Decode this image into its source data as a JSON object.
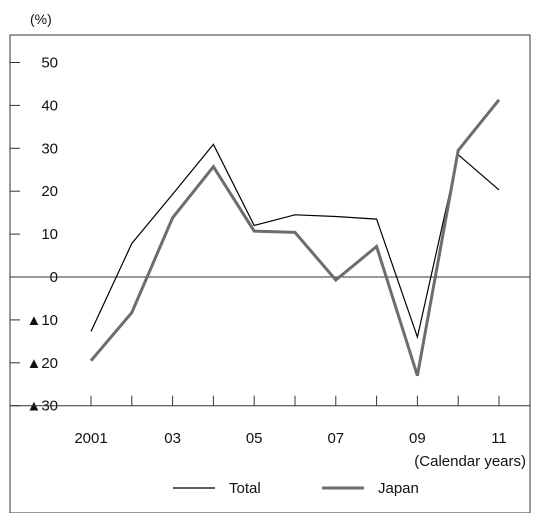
{
  "chart_data": {
    "type": "line",
    "title": "",
    "y_unit": "(%)",
    "x_axis_note": "(Calendar years)",
    "x": [
      2001,
      2002,
      2003,
      2004,
      2005,
      2006,
      2007,
      2008,
      2009,
      2010,
      2011
    ],
    "x_tick_labels": [
      {
        "x": 2001,
        "label": "2001"
      },
      {
        "x": 2003,
        "label": "03"
      },
      {
        "x": 2005,
        "label": "05"
      },
      {
        "x": 2007,
        "label": "07"
      },
      {
        "x": 2009,
        "label": "09"
      },
      {
        "x": 2011,
        "label": "11"
      }
    ],
    "y_ticks": [
      {
        "value": 50,
        "label": "50"
      },
      {
        "value": 40,
        "label": "40"
      },
      {
        "value": 30,
        "label": "30"
      },
      {
        "value": 20,
        "label": "20"
      },
      {
        "value": 10,
        "label": "10"
      },
      {
        "value": 0,
        "label": "0"
      },
      {
        "value": -10,
        "label": "▲10"
      },
      {
        "value": -20,
        "label": "▲20"
      },
      {
        "value": -30,
        "label": "▲30"
      }
    ],
    "ylim": [
      -30,
      60
    ],
    "grid": false,
    "legend_position": "bottom",
    "series": [
      {
        "name": "Total",
        "color": "#000000",
        "style": "thin",
        "values": [
          -12.7,
          7.8,
          19.3,
          30.9,
          12.0,
          14.5,
          14.1,
          13.5,
          -14.0,
          28.5,
          20.3
        ]
      },
      {
        "name": "Japan",
        "color": "#6d6d6d",
        "style": "thick",
        "values": [
          -19.5,
          -8.3,
          13.8,
          25.7,
          10.7,
          10.4,
          -0.7,
          7.1,
          -23.0,
          29.5,
          41.3
        ]
      }
    ]
  }
}
